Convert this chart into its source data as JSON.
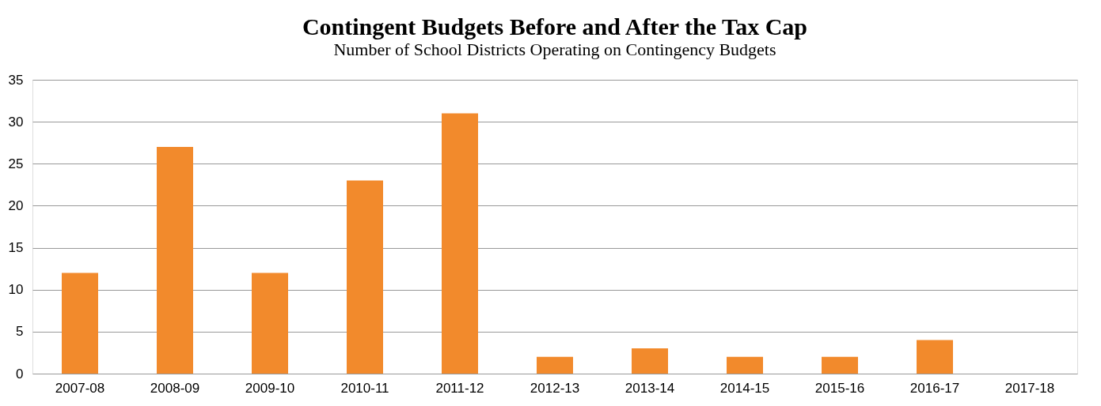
{
  "chart_data": {
    "type": "bar",
    "title": "Contingent Budgets Before and After the Tax Cap",
    "subtitle": "Number of School Districts Operating on Contingency Budgets",
    "categories": [
      "2007-08",
      "2008-09",
      "2009-10",
      "2010-11",
      "2011-12",
      "2012-13",
      "2013-14",
      "2014-15",
      "2015-16",
      "2016-17",
      "2017-18"
    ],
    "values": [
      12,
      27,
      12,
      23,
      31,
      2,
      3,
      2,
      2,
      4,
      0
    ],
    "color": "#f28a2c",
    "ylim": [
      0,
      35
    ],
    "yticks": [
      0,
      5,
      10,
      15,
      20,
      25,
      30,
      35
    ],
    "grid": "y"
  }
}
